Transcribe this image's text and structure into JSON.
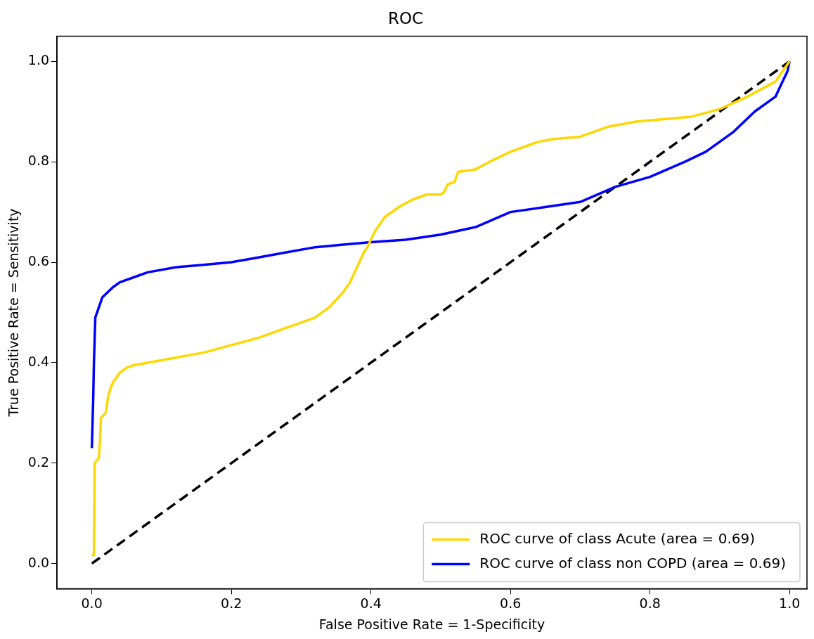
{
  "chart_data": {
    "type": "line",
    "title": "ROC",
    "xlabel": "False Positive Rate = 1-Specificity",
    "ylabel": "True Positive Rate = Sensitivity",
    "xlim": [
      -0.05,
      1.025
    ],
    "ylim": [
      -0.05,
      1.05
    ],
    "xticks": [
      {
        "value": 0,
        "label": "0.0"
      },
      {
        "value": 0.2,
        "label": "0.2"
      },
      {
        "value": 0.4,
        "label": "0.4"
      },
      {
        "value": 0.6,
        "label": "0.6"
      },
      {
        "value": 0.8,
        "label": "0.8"
      },
      {
        "value": 1,
        "label": "1.0"
      }
    ],
    "yticks": [
      {
        "value": 0,
        "label": "0.0"
      },
      {
        "value": 0.2,
        "label": "0.2"
      },
      {
        "value": 0.4,
        "label": "0.4"
      },
      {
        "value": 0.6,
        "label": "0.6"
      },
      {
        "value": 0.8,
        "label": "0.8"
      },
      {
        "value": 1,
        "label": "1.0"
      }
    ],
    "grid": false,
    "legend": "bottom right",
    "marker": "none",
    "series": [
      {
        "name": "ROC curve of class Acute (area = 0.69)",
        "color": "#ffd700",
        "line_style": "solid",
        "x": [
          0,
          0.003,
          0.004,
          0.01,
          0.012,
          0.013,
          0.02,
          0.023,
          0.027,
          0.03,
          0.04,
          0.05,
          0.06,
          0.08,
          0.12,
          0.16,
          0.2,
          0.24,
          0.28,
          0.3,
          0.32,
          0.34,
          0.36,
          0.37,
          0.38,
          0.39,
          0.395,
          0.405,
          0.42,
          0.44,
          0.46,
          0.48,
          0.5,
          0.505,
          0.51,
          0.52,
          0.525,
          0.55,
          0.57,
          0.6,
          0.62,
          0.64,
          0.66,
          0.7,
          0.72,
          0.74,
          0.78,
          0.82,
          0.86,
          0.9,
          0.94,
          0.96,
          0.98,
          0.99,
          1.0
        ],
        "values": [
          0.017,
          0.017,
          0.2,
          0.21,
          0.25,
          0.29,
          0.3,
          0.33,
          0.35,
          0.36,
          0.38,
          0.39,
          0.395,
          0.4,
          0.41,
          0.42,
          0.435,
          0.45,
          0.47,
          0.48,
          0.49,
          0.51,
          0.54,
          0.56,
          0.59,
          0.62,
          0.63,
          0.66,
          0.69,
          0.71,
          0.725,
          0.735,
          0.735,
          0.74,
          0.755,
          0.76,
          0.78,
          0.785,
          0.8,
          0.82,
          0.83,
          0.84,
          0.845,
          0.85,
          0.86,
          0.87,
          0.88,
          0.885,
          0.89,
          0.905,
          0.93,
          0.945,
          0.96,
          0.98,
          1.0
        ]
      },
      {
        "name": "ROC curve of class non COPD (area = 0.69)",
        "color": "#0000ff",
        "line_style": "solid",
        "x": [
          0,
          0.002,
          0.003,
          0.005,
          0.01,
          0.015,
          0.03,
          0.04,
          0.06,
          0.08,
          0.12,
          0.16,
          0.2,
          0.24,
          0.28,
          0.32,
          0.36,
          0.4,
          0.45,
          0.5,
          0.55,
          0.6,
          0.65,
          0.7,
          0.75,
          0.8,
          0.85,
          0.88,
          0.92,
          0.95,
          0.98,
          0.99,
          0.997,
          1.0
        ],
        "values": [
          0.23,
          0.33,
          0.4,
          0.49,
          0.51,
          0.53,
          0.55,
          0.56,
          0.57,
          0.58,
          0.59,
          0.595,
          0.6,
          0.61,
          0.62,
          0.63,
          0.635,
          0.64,
          0.645,
          0.655,
          0.67,
          0.7,
          0.71,
          0.72,
          0.75,
          0.77,
          0.8,
          0.82,
          0.86,
          0.9,
          0.93,
          0.96,
          0.98,
          1.0
        ]
      },
      {
        "color": "#000000",
        "line_style": "dashed",
        "x": [
          0,
          1
        ],
        "values": [
          0,
          1
        ]
      }
    ]
  }
}
